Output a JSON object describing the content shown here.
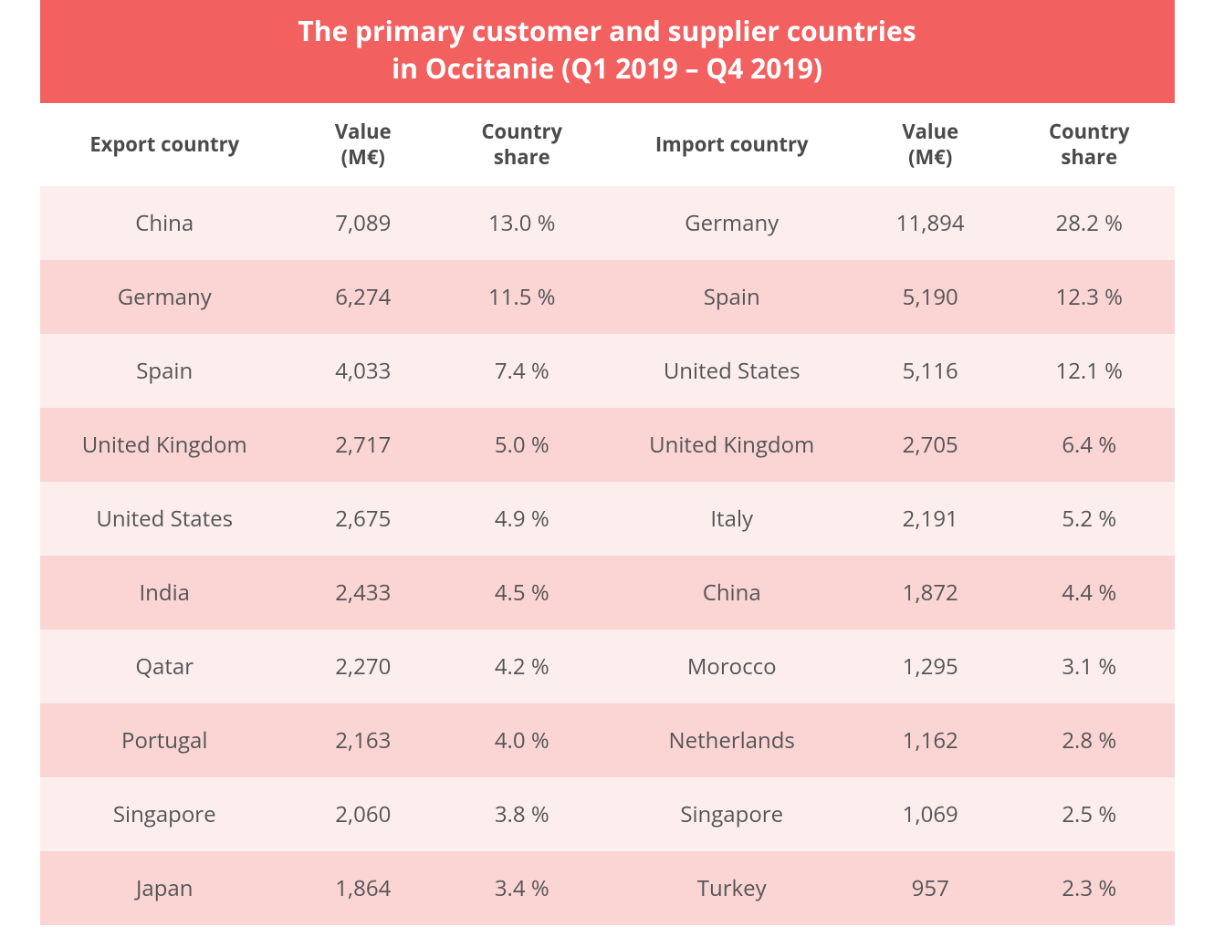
{
  "table": {
    "type": "table",
    "title_line1": "The primary customer and supplier countries",
    "title_line2": "in Occitanie (Q1 2019 – Q4 2019)",
    "title_bg": "#f26060",
    "title_color": "#ffffff",
    "title_fontsize": 30,
    "header_bg": "#ffffff",
    "header_color": "#4a4a4a",
    "header_fontsize": 22,
    "cell_color": "#555555",
    "cell_fontsize": 24,
    "row_odd_bg": "#fdeeee",
    "row_even_bg": "#fbd4d4",
    "columns": [
      {
        "label": "Export country",
        "width_pct": 22
      },
      {
        "label": "Value\n(M€)",
        "width_pct": 13
      },
      {
        "label": "Country\nshare",
        "width_pct": 15
      },
      {
        "label": "Import country",
        "width_pct": 22
      },
      {
        "label": "Value\n(M€)",
        "width_pct": 13
      },
      {
        "label": "Country\nshare",
        "width_pct": 15
      }
    ],
    "rows": [
      [
        "China",
        "7,089",
        "13.0 %",
        "Germany",
        "11,894",
        "28.2 %"
      ],
      [
        "Germany",
        "6,274",
        "11.5 %",
        "Spain",
        "5,190",
        "12.3 %"
      ],
      [
        "Spain",
        "4,033",
        "7.4 %",
        "United States",
        "5,116",
        "12.1 %"
      ],
      [
        "United Kingdom",
        "2,717",
        "5.0 %",
        "United Kingdom",
        "2,705",
        "6.4 %"
      ],
      [
        "United States",
        "2,675",
        "4.9 %",
        "Italy",
        "2,191",
        "5.2 %"
      ],
      [
        "India",
        "2,433",
        "4.5 %",
        "China",
        "1,872",
        "4.4 %"
      ],
      [
        "Qatar",
        "2,270",
        "4.2 %",
        "Morocco",
        "1,295",
        "3.1 %"
      ],
      [
        "Portugal",
        "2,163",
        "4.0 %",
        "Netherlands",
        "1,162",
        "2.8 %"
      ],
      [
        "Singapore",
        "2,060",
        "3.8 %",
        "Singapore",
        "1,069",
        "2.5 %"
      ],
      [
        "Japan",
        "1,864",
        "3.4 %",
        "Turkey",
        "957",
        "2.3 %"
      ]
    ]
  }
}
